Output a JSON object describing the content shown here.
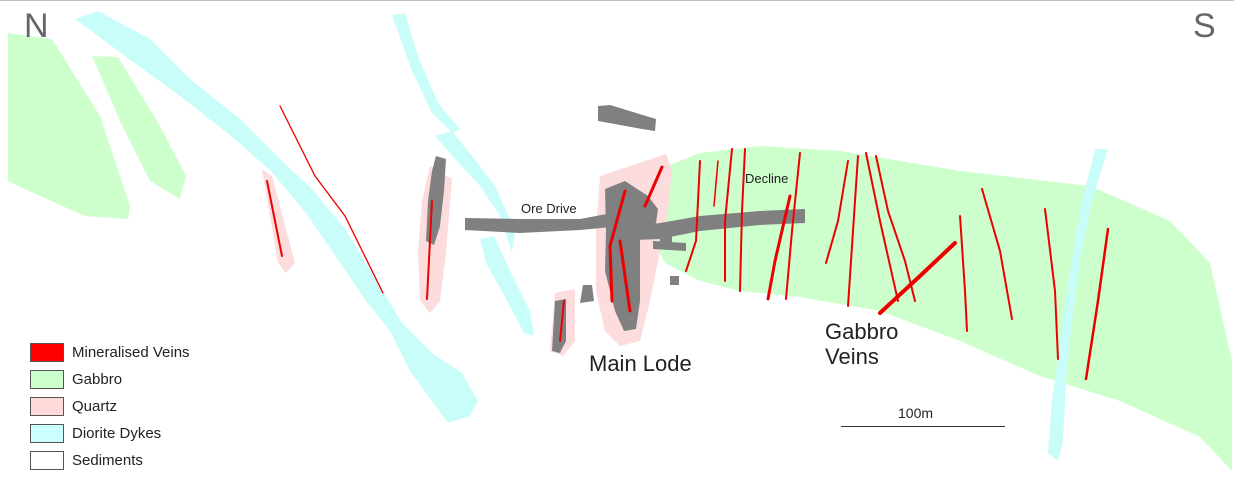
{
  "compass": {
    "north": "N",
    "south": "S"
  },
  "labels": {
    "ore_drive": "Ore Drive",
    "decline": "Decline",
    "main_lode": "Main Lode",
    "gabbro_veins": "Gabbro Veins"
  },
  "scale_bar": {
    "label": "100m"
  },
  "legend": [
    {
      "label": "Mineralised Veins",
      "color": "#ff0000"
    },
    {
      "label": "Gabbro",
      "color": "#ccffcc"
    },
    {
      "label": "Quartz",
      "color": "#ffd9d9"
    },
    {
      "label": "Diorite Dykes",
      "color": "#ccffff"
    },
    {
      "label": "Sediments",
      "color": "#ffffff"
    }
  ],
  "colors": {
    "gabbro": "#ccffcc",
    "quartz": "#fcdcdc",
    "diorite_dykes": "#c9fdfa",
    "veins": "#ee0000",
    "workings": "#808080"
  }
}
